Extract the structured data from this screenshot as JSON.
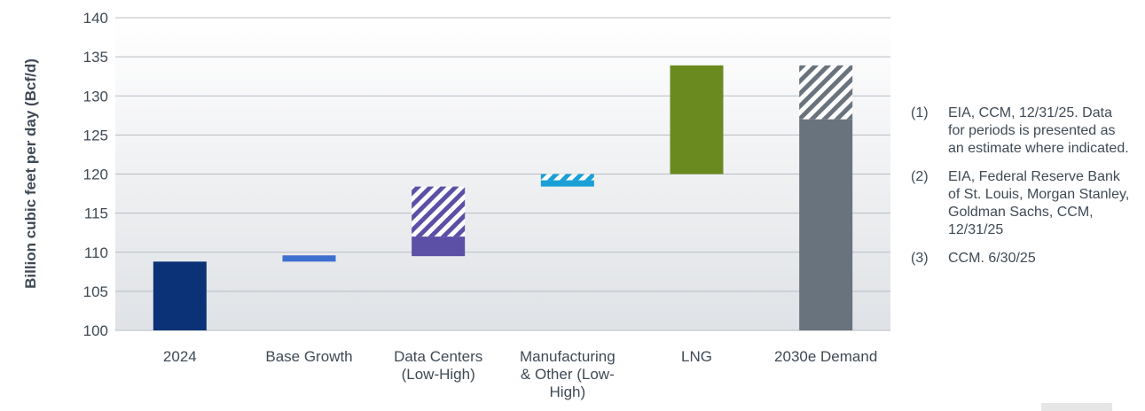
{
  "chart_data": {
    "type": "bar",
    "subtype": "waterfall",
    "ylabel": "Billion cubic feet per day (Bcf/d)",
    "ylim": [
      100,
      140
    ],
    "yticks": [
      100,
      105,
      110,
      115,
      120,
      125,
      130,
      135,
      140
    ],
    "categories": [
      "2024",
      "Base Growth",
      "Data Centers (Low-High)",
      "Manufacturing & Other (Low-High)",
      "LNG",
      "2030e Demand"
    ],
    "category_lines": [
      [
        "2024"
      ],
      [
        "Base Growth"
      ],
      [
        "Data Centers",
        "(Low-High)"
      ],
      [
        "Manufacturing",
        "& Other (Low-",
        "High)"
      ],
      [
        "LNG"
      ],
      [
        "2030e Demand"
      ]
    ],
    "bars": [
      {
        "category": "2024",
        "low": 100,
        "high": 108.8,
        "color": "#0b3276",
        "range_top": null
      },
      {
        "category": "Base Growth",
        "low": 108.8,
        "high": 109.6,
        "color": "#3d6fcf",
        "range_top": null
      },
      {
        "category": "Data Centers (Low-High)",
        "low": 109.5,
        "high": 112.0,
        "color": "#5b4fa6",
        "range_top": 118.4
      },
      {
        "category": "Manufacturing & Other (Low-High)",
        "low": 118.4,
        "high": 119.2,
        "color": "#1aa0d6",
        "range_top": 120.0
      },
      {
        "category": "LNG",
        "low": 120.0,
        "high": 133.9,
        "color": "#6a8a1f",
        "range_top": null
      },
      {
        "category": "2030e Demand",
        "low": 100,
        "high": 127.0,
        "color": "#69737d",
        "range_top": 133.9
      }
    ],
    "grid": true,
    "background": "gradient"
  },
  "notes": [
    {
      "num": "(1)",
      "text": "EIA, CCM, 12/31/25. Data for periods is presented as an estimate where indicated."
    },
    {
      "num": "(2)",
      "text": "EIA, Federal Reserve Bank of St. Louis, Morgan Stanley, Goldman Sachs, CCM, 12/31/25"
    },
    {
      "num": "(3)",
      "text": "CCM. 6/30/25"
    }
  ]
}
